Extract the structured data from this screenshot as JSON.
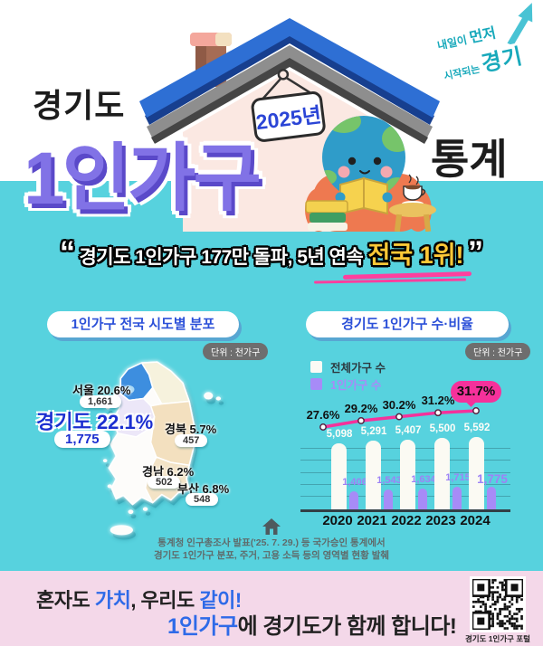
{
  "header": {
    "region_label": "경기도",
    "title_bubble": "1인가구",
    "title_suffix": "통계",
    "year_sign": "2025년",
    "logo": {
      "line1_small": "내일이",
      "line1_big": "먼저",
      "line2_small": "시작되는",
      "line2_big": "경기"
    }
  },
  "quote": {
    "open": "“",
    "close": "”",
    "text_main": "경기도 1인가구 177만 돌파,  5년 연속 ",
    "text_highlight": "전국 1위!"
  },
  "map_section": {
    "title": "1인가구 전국 시도별 분포",
    "unit": "단위 : 천가구",
    "regions": [
      {
        "name": "서울",
        "pct": "20.6%",
        "value": "1,661"
      },
      {
        "name": "경기도",
        "pct": "22.1%",
        "value": "1,775"
      },
      {
        "name": "경북",
        "pct": "5.7%",
        "value": "457"
      },
      {
        "name": "경남",
        "pct": "6.2%",
        "value": "502"
      },
      {
        "name": "부산",
        "pct": "6.8%",
        "value": "548"
      }
    ]
  },
  "chart_section": {
    "title": "경기도 1인가구 수·비율",
    "unit": "단위 : 천가구",
    "legend": [
      {
        "label": "전체가구 수"
      },
      {
        "label": "1인가구 수"
      }
    ]
  },
  "chart_data": {
    "type": "bar",
    "categories": [
      "2020",
      "2021",
      "2022",
      "2023",
      "2024"
    ],
    "series": [
      {
        "name": "전체가구 수",
        "type": "bar",
        "color": "#fbfaf3",
        "values": [
          5098,
          5291,
          5407,
          5500,
          5592
        ],
        "labels": [
          "5,098",
          "5,291",
          "5,407",
          "5,500",
          "5,592"
        ]
      },
      {
        "name": "1인가구 수",
        "type": "bar",
        "color": "#a78bf7",
        "values": [
          1406,
          1543,
          1634,
          1715,
          1775
        ],
        "labels": [
          "1,406",
          "1,543",
          "1,634",
          "1,715",
          "1,775"
        ]
      },
      {
        "name": "1인가구 비율",
        "type": "line",
        "color": "#f5319b",
        "values": [
          27.6,
          29.2,
          30.2,
          31.2,
          31.7
        ],
        "labels": [
          "27.6%",
          "29.2%",
          "30.2%",
          "31.2%",
          "31.7%"
        ]
      }
    ],
    "title": "경기도 1인가구 수·비율",
    "xlabel": "",
    "ylabel": "",
    "unit": "천가구",
    "grid": true,
    "legend_position": "top-left"
  },
  "footnote": {
    "line1": "통계청 인구총조사 발표('25. 7. 29.) 등 국가승인 통계에서",
    "line2": "경기도 1인가구 분포, 주거, 고용 소득 등의 영역별 현황 발췌"
  },
  "footer": {
    "l1a": "혼자도 ",
    "l1b": "가치",
    "l1c": ", 우리도 ",
    "l1d": "같이!",
    "l2a": "1인가구",
    "l2b": "에 경기도가 함께 합니다!",
    "qr_caption": "경기도 1인가구 포털"
  },
  "colors": {
    "teal_bg": "#57d2de",
    "pink_bg": "#f4d8e9",
    "accent_blue": "#2b50d8",
    "deep_blue": "#1b2ed0",
    "bubble_purple": "#8172e6",
    "bar_purple": "#a78bf7",
    "line_pink": "#f5319b",
    "highlight_yellow": "#ffc937",
    "map_gyeonggi": "#3d8edf"
  }
}
